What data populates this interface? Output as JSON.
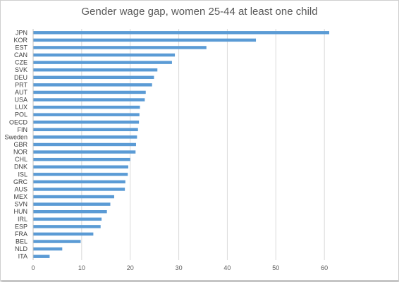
{
  "chart_data": {
    "type": "bar",
    "orientation": "horizontal",
    "title": "Gender wage gap, women 25-44 at least one child",
    "xlabel": "",
    "ylabel": "",
    "xlim": [
      0,
      70
    ],
    "x_ticks": [
      0,
      10,
      20,
      30,
      40,
      50,
      60
    ],
    "grid": true,
    "bar_color": "#5b9bd5",
    "categories": [
      "JPN",
      "KOR",
      "EST",
      "CAN",
      "CZE",
      "SVK",
      "DEU",
      "PRT",
      "AUT",
      "USA",
      "LUX",
      "POL",
      "OECD",
      "FIN",
      "Sweden",
      "GBR",
      "NOR",
      "CHL",
      "DNK",
      "ISL",
      "GRC",
      "AUS",
      "MEX",
      "SVN",
      "HUN",
      "IRL",
      "ESP",
      "FRA",
      "BEL",
      "NLD",
      "ITA"
    ],
    "values": [
      61.0,
      45.9,
      35.7,
      29.2,
      28.6,
      25.6,
      24.9,
      24.5,
      23.2,
      23.0,
      22.0,
      21.9,
      21.8,
      21.6,
      21.4,
      21.2,
      21.1,
      20.0,
      19.6,
      19.5,
      19.0,
      18.9,
      16.7,
      15.9,
      15.2,
      14.1,
      13.9,
      12.4,
      9.8,
      6.0,
      3.4
    ]
  }
}
